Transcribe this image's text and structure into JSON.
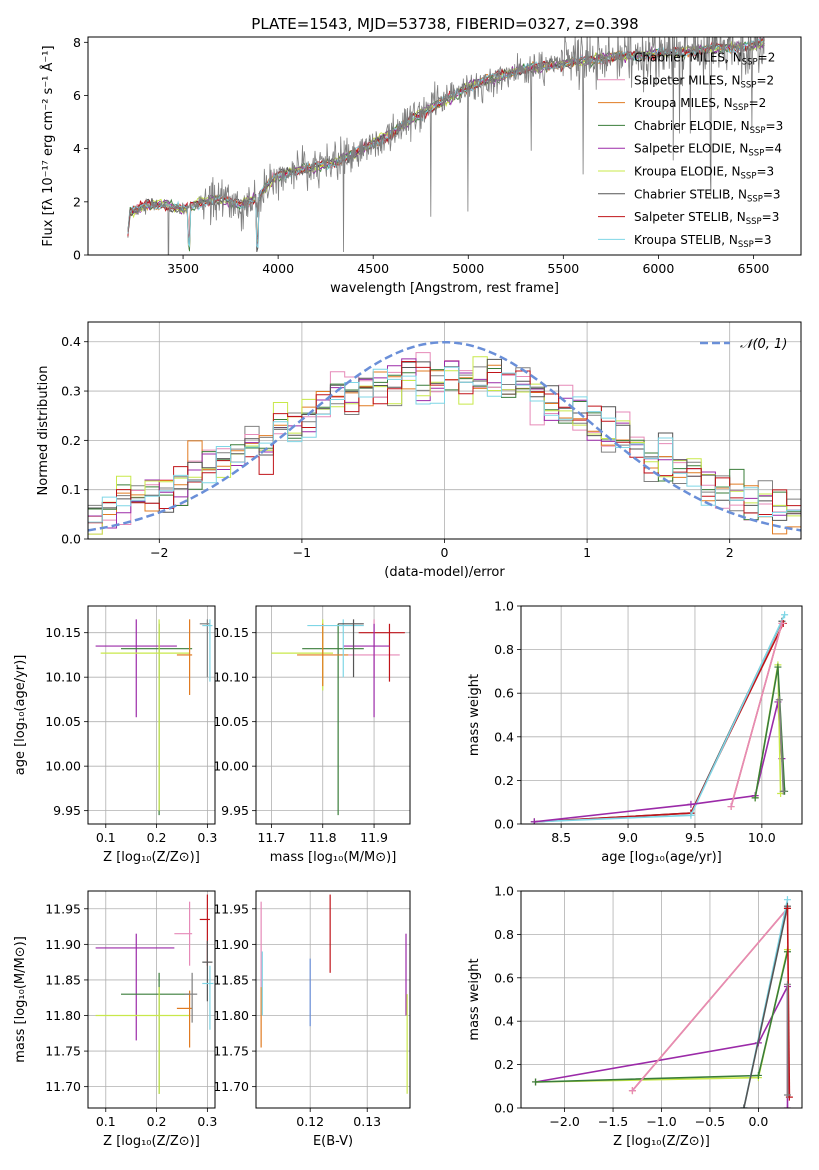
{
  "figure_title": "PLATE=1543, MJD=53738, FIBERID=0327, z=0.398",
  "colors": {
    "Chabrier MILES": "#808080",
    "Salpeter MILES": "#e68ab8",
    "Kroupa MILES": "#e07b22",
    "Chabrier ELODIE": "#3a7d3a",
    "Salpeter ELODIE": "#9b2aa8",
    "Kroupa ELODIE": "#c8e84a",
    "Chabrier STELIB": "#555555",
    "Salpeter STELIB": "#c0141a",
    "Kroupa STELIB": "#7fd6e6",
    "gaussian": "#6a8fd8",
    "data": "#7f7f7f"
  },
  "chart_data": [
    {
      "id": "spectrum",
      "type": "line",
      "xlabel": "wavelength [Angstrom, rest frame]",
      "ylabel": "Flux [fλ 10⁻¹⁷ erg cm⁻² s⁻¹ Å⁻¹]",
      "xlim": [
        3000,
        6750
      ],
      "ylim": [
        0,
        8.2
      ],
      "xticks": [
        3500,
        4000,
        4500,
        5000,
        5500,
        6000,
        6500
      ],
      "yticks": [
        0,
        2,
        4,
        6,
        8
      ],
      "legend_position": "right",
      "legend": [
        {
          "prefix": "Chabrier MILES, N",
          "n": "=2"
        },
        {
          "prefix": "Salpeter MILES, N",
          "n": "=2"
        },
        {
          "prefix": "Kroupa MILES, N",
          "n": "=2"
        },
        {
          "prefix": "Chabrier ELODIE, N",
          "n": "=3"
        },
        {
          "prefix": "Salpeter ELODIE, N",
          "n": "=4"
        },
        {
          "prefix": "Kroupa ELODIE, N",
          "n": "=3"
        },
        {
          "prefix": "Chabrier STELIB, N",
          "n": "=3"
        },
        {
          "prefix": "Salpeter STELIB, N",
          "n": "=3"
        },
        {
          "prefix": "Kroupa STELIB, N",
          "n": "=3"
        }
      ],
      "legend_sub": "SSP",
      "continuum": [
        [
          3200,
          0.0
        ],
        [
          3220,
          1.6
        ],
        [
          3300,
          1.85
        ],
        [
          3400,
          1.9
        ],
        [
          3500,
          1.7
        ],
        [
          3600,
          2.0
        ],
        [
          3700,
          2.1
        ],
        [
          3800,
          1.9
        ],
        [
          3900,
          2.2
        ],
        [
          3950,
          2.7
        ],
        [
          4000,
          3.0
        ],
        [
          4100,
          3.2
        ],
        [
          4200,
          3.3
        ],
        [
          4300,
          3.5
        ],
        [
          4400,
          3.8
        ],
        [
          4500,
          4.2
        ],
        [
          4600,
          4.6
        ],
        [
          4700,
          5.1
        ],
        [
          4800,
          5.5
        ],
        [
          4900,
          5.9
        ],
        [
          5000,
          6.3
        ],
        [
          5100,
          6.6
        ],
        [
          5200,
          6.8
        ],
        [
          5300,
          7.0
        ],
        [
          5400,
          7.1
        ],
        [
          5500,
          7.2
        ],
        [
          5600,
          7.3
        ],
        [
          5700,
          7.4
        ],
        [
          5800,
          7.5
        ],
        [
          5900,
          7.5
        ],
        [
          6000,
          7.6
        ],
        [
          6100,
          7.6
        ],
        [
          6200,
          7.7
        ],
        [
          6300,
          7.8
        ],
        [
          6400,
          7.8
        ],
        [
          6500,
          7.9
        ],
        [
          6560,
          8.0
        ]
      ]
    },
    {
      "id": "residuals",
      "type": "histogram",
      "xlabel": "(data-model)/error",
      "ylabel": "Normed distribution",
      "xlim": [
        -2.5,
        2.5
      ],
      "ylim": [
        0,
        0.44
      ],
      "xticks": [
        -2,
        -1,
        0,
        1,
        2
      ],
      "yticks": [
        0.0,
        0.1,
        0.2,
        0.3,
        0.4
      ],
      "grid": true,
      "legend_position": "top-right",
      "gaussian_label": "𝒩(0, 1)",
      "gaussian": {
        "mean": 0,
        "sigma": 1
      }
    },
    {
      "id": "age-Z",
      "type": "scatter",
      "xlabel": "Z [log₁₀(Z/Z⊙)]",
      "ylabel": "age  [log₁₀(age/yr)]",
      "xlim": [
        0.065,
        0.315
      ],
      "ylim": [
        9.935,
        10.18
      ],
      "xticks": [
        0.1,
        0.2,
        0.3
      ],
      "yticks": [
        9.95,
        10.0,
        10.05,
        10.1,
        10.15
      ],
      "grid": true,
      "points": [
        {
          "model": "Salpeter ELODIE",
          "x": 0.16,
          "y": 10.135,
          "ex": [
            0.08,
            0.24
          ],
          "ey": [
            10.055,
            10.165
          ]
        },
        {
          "model": "Chabrier ELODIE",
          "x": 0.205,
          "y": 10.132,
          "ex": [
            0.13,
            0.27
          ],
          "ey": [
            9.945,
            10.16
          ]
        },
        {
          "model": "Kroupa ELODIE",
          "x": 0.205,
          "y": 10.127,
          "ex": [
            0.09,
            0.265
          ],
          "ey": [
            9.95,
            10.165
          ]
        },
        {
          "model": "Kroupa MILES",
          "x": 0.265,
          "y": 10.125,
          "ex": [
            0.24,
            0.27
          ],
          "ey": [
            10.08,
            10.165
          ]
        },
        {
          "model": "Chabrier MILES",
          "x": 0.3,
          "y": 10.16,
          "ex": [
            0.285,
            0.305
          ],
          "ey": [
            10.1,
            10.165
          ]
        },
        {
          "model": "Kroupa STELIB",
          "x": 0.305,
          "y": 10.158,
          "ex": [
            0.29,
            0.31
          ],
          "ey": [
            10.095,
            10.165
          ]
        }
      ]
    },
    {
      "id": "age-mass",
      "type": "scatter",
      "xlabel": "mass [log₁₀(M/M⊙)]",
      "ylabel": "",
      "xlim": [
        11.67,
        11.97
      ],
      "ylim": [
        9.935,
        10.18
      ],
      "xticks": [
        11.7,
        11.8,
        11.9
      ],
      "yticks": [
        9.95,
        10.0,
        10.05,
        10.1,
        10.15
      ],
      "grid": true,
      "points": [
        {
          "model": "Kroupa ELODIE",
          "x": 11.8,
          "y": 10.127,
          "ex": [
            11.7,
            11.82
          ],
          "ey": [
            10.085,
            10.165
          ]
        },
        {
          "model": "Chabrier ELODIE",
          "x": 11.83,
          "y": 10.132,
          "ex": [
            11.76,
            11.88
          ],
          "ey": [
            9.945,
            10.16
          ]
        },
        {
          "model": "Kroupa MILES",
          "x": 11.8,
          "y": 10.125,
          "ex": [
            11.75,
            11.85
          ],
          "ey": [
            10.09,
            10.16
          ]
        },
        {
          "model": "Salpeter MILES",
          "x": 11.9,
          "y": 10.125,
          "ex": [
            11.85,
            11.95
          ],
          "ey": [
            10.1,
            10.165
          ]
        },
        {
          "model": "Salpeter STELIB",
          "x": 11.93,
          "y": 10.15,
          "ex": [
            11.87,
            11.96
          ],
          "ey": [
            10.095,
            10.16
          ]
        },
        {
          "model": "Salpeter ELODIE",
          "x": 11.9,
          "y": 10.135,
          "ex": [
            11.84,
            11.93
          ],
          "ey": [
            10.055,
            10.16
          ]
        },
        {
          "model": "Kroupa STELIB",
          "x": 11.84,
          "y": 10.158,
          "ex": [
            11.77,
            11.88
          ],
          "ey": [
            10.1,
            10.165
          ]
        },
        {
          "model": "Chabrier STELIB",
          "x": 11.86,
          "y": 10.16,
          "ex": [
            11.83,
            11.88
          ],
          "ey": [
            10.1,
            10.165
          ]
        }
      ]
    },
    {
      "id": "massweight-age",
      "type": "line",
      "xlabel": "age  [log₁₀(age/yr)]",
      "ylabel": "mass weight",
      "xlim": [
        8.2,
        10.3
      ],
      "ylim": [
        0,
        1.0
      ],
      "xticks": [
        8.5,
        9.0,
        9.5,
        10.0
      ],
      "yticks": [
        0.0,
        0.2,
        0.4,
        0.6,
        0.8,
        1.0
      ],
      "grid": true,
      "series": [
        {
          "model": "Chabrier STELIB",
          "x": [
            8.3,
            9.47,
            10.15
          ],
          "y": [
            0.01,
            0.05,
            0.93
          ]
        },
        {
          "model": "Salpeter STELIB",
          "x": [
            8.3,
            9.47,
            10.16
          ],
          "y": [
            0.01,
            0.05,
            0.92
          ]
        },
        {
          "model": "Kroupa STELIB",
          "x": [
            8.3,
            9.47,
            10.17
          ],
          "y": [
            0.01,
            0.04,
            0.96
          ]
        },
        {
          "model": "Salpeter ELODIE",
          "x": [
            8.3,
            9.47,
            9.95,
            10.12,
            10.15
          ],
          "y": [
            0.01,
            0.09,
            0.13,
            0.56,
            0.3
          ]
        },
        {
          "model": "Kroupa MILES",
          "x": [
            9.77,
            10.15
          ],
          "y": [
            0.08,
            0.92
          ]
        },
        {
          "model": "Salpeter MILES",
          "x": [
            9.77,
            10.15
          ],
          "y": [
            0.08,
            0.92
          ]
        },
        {
          "model": "Kroupa ELODIE",
          "x": [
            9.95,
            10.12,
            10.14
          ],
          "y": [
            0.12,
            0.73,
            0.14
          ]
        },
        {
          "model": "Chabrier ELODIE",
          "x": [
            9.95,
            10.12,
            10.17
          ],
          "y": [
            0.12,
            0.72,
            0.15
          ]
        },
        {
          "model": "Chabrier MILES",
          "x": [
            10.13,
            10.16
          ],
          "y": [
            0.57,
            0.15
          ]
        }
      ]
    },
    {
      "id": "mass-Z",
      "type": "scatter",
      "xlabel": "Z [log₁₀(Z/Z⊙)]",
      "ylabel": "mass [log₁₀(M/M⊙)]",
      "xlim": [
        0.065,
        0.315
      ],
      "ylim": [
        11.67,
        11.975
      ],
      "xticks": [
        0.1,
        0.2,
        0.3
      ],
      "yticks": [
        11.7,
        11.75,
        11.8,
        11.85,
        11.9,
        11.95
      ],
      "grid": true,
      "points": [
        {
          "model": "Salpeter ELODIE",
          "x": 0.16,
          "y": 11.895,
          "ex": [
            0.08,
            0.235
          ],
          "ey": [
            11.765,
            11.915
          ]
        },
        {
          "model": "Chabrier ELODIE",
          "x": 0.205,
          "y": 11.83,
          "ex": [
            0.13,
            0.265
          ],
          "ey": [
            11.69,
            11.86
          ]
        },
        {
          "model": "Kroupa ELODIE",
          "x": 0.205,
          "y": 11.8,
          "ex": [
            0.08,
            0.265
          ],
          "ey": [
            11.69,
            11.84
          ]
        },
        {
          "model": "Salpeter MILES",
          "x": 0.265,
          "y": 11.915,
          "ex": [
            0.235,
            0.27
          ],
          "ey": [
            11.87,
            11.96
          ]
        },
        {
          "model": "Kroupa MILES",
          "x": 0.265,
          "y": 11.81,
          "ex": [
            0.24,
            0.27
          ],
          "ey": [
            11.755,
            11.835
          ]
        },
        {
          "model": "Salpeter STELIB",
          "x": 0.3,
          "y": 11.935,
          "ex": [
            0.285,
            0.305
          ],
          "ey": [
            11.87,
            11.97
          ]
        },
        {
          "model": "Chabrier STELIB",
          "x": 0.3,
          "y": 11.875,
          "ex": [
            0.29,
            0.31
          ],
          "ey": [
            11.82,
            11.905
          ]
        },
        {
          "model": "Kroupa STELIB",
          "x": 0.305,
          "y": 11.845,
          "ex": [
            0.29,
            0.312
          ],
          "ey": [
            11.78,
            11.87
          ]
        },
        {
          "model": "Chabrier MILES",
          "x": 0.27,
          "y": 11.83,
          "ex": [
            0.255,
            0.28
          ],
          "ey": [
            11.79,
            11.86
          ]
        }
      ]
    },
    {
      "id": "mass-EBV",
      "type": "scatter",
      "xlabel": "E(B-V)",
      "ylabel": "",
      "xlim": [
        0.1105,
        0.1375
      ],
      "ylim": [
        11.67,
        11.975
      ],
      "xticks": [
        0.12,
        0.13
      ],
      "yticks": [
        11.7,
        11.75,
        11.8,
        11.85,
        11.9,
        11.95
      ],
      "grid": true,
      "points": [
        {
          "model": "Salpeter MILES",
          "x": 0.1114,
          "y": 11.9,
          "ex": [
            0.1114,
            0.1114
          ],
          "ey": [
            11.84,
            11.96
          ]
        },
        {
          "model": "Kroupa MILES",
          "x": 0.1114,
          "y": 11.8,
          "ex": [
            0.1114,
            0.1114
          ],
          "ey": [
            11.755,
            11.84
          ]
        },
        {
          "model": "Kroupa STELIB",
          "x": 0.1116,
          "y": 11.84,
          "ex": [
            0.1116,
            0.1116
          ],
          "ey": [
            11.8,
            11.89
          ]
        },
        {
          "model": "gaussian",
          "x": 0.12,
          "y": 11.83,
          "ex": [
            0.12,
            0.12
          ],
          "ey": [
            11.785,
            11.88
          ]
        },
        {
          "model": "Salpeter STELIB",
          "x": 0.1235,
          "y": 11.915,
          "ex": [
            0.1235,
            0.1235
          ],
          "ey": [
            11.86,
            11.97
          ]
        },
        {
          "model": "Salpeter ELODIE",
          "x": 0.1368,
          "y": 11.86,
          "ex": [
            0.1368,
            0.1368
          ],
          "ey": [
            11.8,
            11.915
          ]
        },
        {
          "model": "Kroupa ELODIE",
          "x": 0.137,
          "y": 11.77,
          "ex": [
            0.137,
            0.137
          ],
          "ey": [
            11.69,
            11.83
          ]
        }
      ]
    },
    {
      "id": "massweight-Z",
      "type": "line",
      "xlabel": "Z [log₁₀(Z/Z⊙)]",
      "ylabel": "mass weight",
      "xlim": [
        -2.45,
        0.45
      ],
      "ylim": [
        0,
        1.0
      ],
      "xticks": [
        -2.0,
        -1.5,
        -1.0,
        -0.5,
        0.0
      ],
      "yticks": [
        0.0,
        0.2,
        0.4,
        0.6,
        0.8,
        1.0
      ],
      "grid": true,
      "series": [
        {
          "model": "Salpeter ELODIE",
          "x": [
            -2.3,
            0.0,
            0.3,
            0.3
          ],
          "y": [
            0.12,
            0.3,
            0.56,
            0.0
          ]
        },
        {
          "model": "Kroupa ELODIE",
          "x": [
            -2.3,
            0.0,
            0.3
          ],
          "y": [
            0.12,
            0.14,
            0.73
          ]
        },
        {
          "model": "Chabrier ELODIE",
          "x": [
            -2.3,
            0.0,
            0.3
          ],
          "y": [
            0.12,
            0.15,
            0.72
          ]
        },
        {
          "model": "Kroupa MILES",
          "x": [
            -1.3,
            0.3
          ],
          "y": [
            0.08,
            0.92
          ]
        },
        {
          "model": "Salpeter MILES",
          "x": [
            -1.3,
            0.3
          ],
          "y": [
            0.08,
            0.92
          ]
        },
        {
          "model": "Kroupa STELIB",
          "x": [
            -0.15,
            0.3
          ],
          "y": [
            0.0,
            0.96
          ]
        },
        {
          "model": "Chabrier STELIB",
          "x": [
            -0.15,
            0.3
          ],
          "y": [
            0.0,
            0.93
          ]
        },
        {
          "model": "Salpeter STELIB",
          "x": [
            0.3,
            0.32
          ],
          "y": [
            0.92,
            0.05
          ]
        },
        {
          "model": "Chabrier MILES",
          "x": [
            0.3,
            0.3
          ],
          "y": [
            0.06,
            0.57
          ]
        }
      ]
    }
  ]
}
